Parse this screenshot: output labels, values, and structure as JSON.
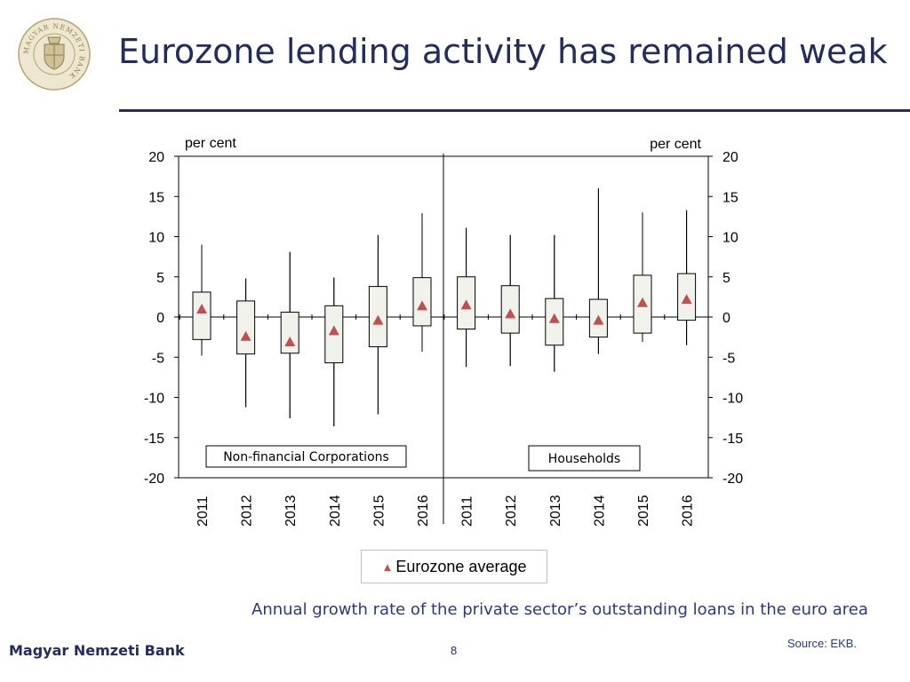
{
  "header": {
    "title": "Eurozone lending activity has remained weak",
    "logo_text": "MAGYAR NEMZETI BANK"
  },
  "chart_data": {
    "type": "box",
    "y_unit_left": "per cent",
    "y_unit_right": "per cent",
    "ylim": [
      -20,
      20
    ],
    "yticks": [
      20,
      15,
      10,
      5,
      0,
      -5,
      -10,
      -15,
      -20
    ],
    "grid": false,
    "panels": [
      {
        "label": "Non-financial Corporations",
        "categories": [
          "2011",
          "2012",
          "2013",
          "2014",
          "2015",
          "2016"
        ],
        "min": [
          -4.8,
          -11.2,
          -12.6,
          -13.6,
          -12.1,
          -4.3
        ],
        "q1": [
          -2.8,
          -4.6,
          -4.5,
          -5.7,
          -3.7,
          -1.1
        ],
        "q3": [
          3.1,
          2.0,
          0.6,
          1.4,
          3.8,
          4.9
        ],
        "max": [
          9.0,
          4.8,
          8.1,
          4.9,
          10.2,
          12.9
        ],
        "average": [
          1.0,
          -2.4,
          -3.1,
          -1.7,
          -0.4,
          1.4
        ]
      },
      {
        "label": "Households",
        "categories": [
          "2011",
          "2012",
          "2013",
          "2014",
          "2015",
          "2016"
        ],
        "min": [
          -6.2,
          -6.1,
          -6.8,
          -4.6,
          -3.1,
          -3.5
        ],
        "q1": [
          -1.5,
          -2.0,
          -3.5,
          -2.5,
          -2.0,
          -0.4
        ],
        "q3": [
          5.0,
          3.9,
          2.3,
          2.2,
          5.2,
          5.4
        ],
        "max": [
          11.1,
          10.2,
          10.2,
          16.0,
          13.0,
          13.3
        ],
        "average": [
          1.5,
          0.4,
          -0.2,
          -0.4,
          1.8,
          2.2
        ]
      }
    ],
    "legend": {
      "label": "Eurozone average",
      "placement": "bottom-center"
    },
    "marker_color": "#c0504d"
  },
  "caption": "Annual growth rate of the private sector’s outstanding loans in the euro area",
  "source": "Source: EKB.",
  "footer": {
    "brand": "Magyar Nemzeti Bank",
    "page_number": "8"
  },
  "colors": {
    "navy": "#232c5b",
    "box_fill": "#f2f2ec",
    "marker": "#c0504d"
  }
}
